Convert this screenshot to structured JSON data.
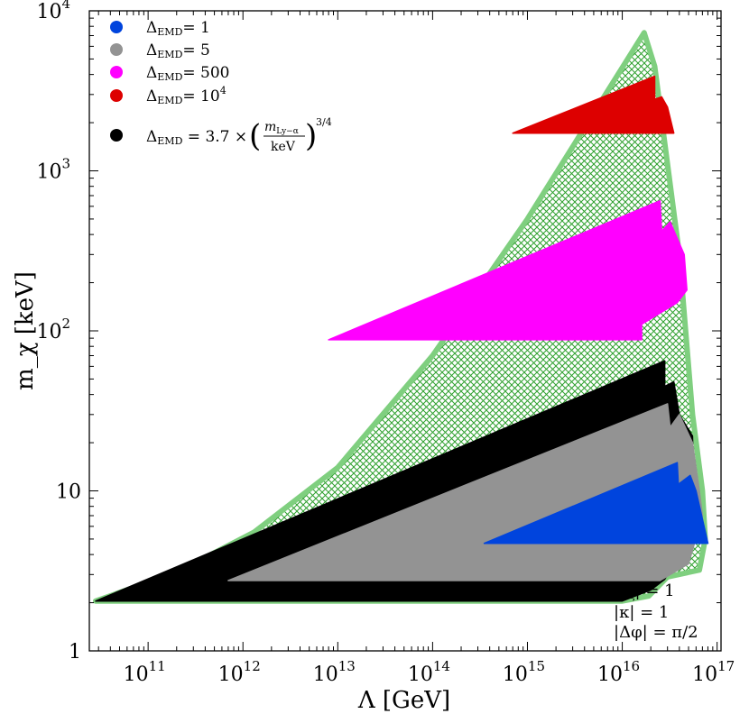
{
  "chart_data": {
    "type": "area",
    "xlabel": "Λ [GeV]",
    "ylabel": "m_χ [keV]",
    "xscale": "log",
    "yscale": "log",
    "xlim": [
      24000000000.0,
      1.1e+17
    ],
    "ylim": [
      1,
      10000
    ],
    "x_ticks": [
      {
        "v": 100000000000.0,
        "m": "10",
        "e": "11"
      },
      {
        "v": 1000000000000.0,
        "m": "10",
        "e": "12"
      },
      {
        "v": 10000000000000.0,
        "m": "10",
        "e": "13"
      },
      {
        "v": 100000000000000.0,
        "m": "10",
        "e": "14"
      },
      {
        "v": 1000000000000000.0,
        "m": "10",
        "e": "15"
      },
      {
        "v": 1e+16,
        "m": "10",
        "e": "16"
      },
      {
        "v": 1e+17,
        "m": "10",
        "e": "17"
      }
    ],
    "y_ticks": [
      {
        "v": 1,
        "m": "1",
        "e": ""
      },
      {
        "v": 10,
        "m": "10",
        "e": ""
      },
      {
        "v": 100,
        "m": "10",
        "e": "2"
      },
      {
        "v": 1000,
        "m": "10",
        "e": "3"
      },
      {
        "v": 10000,
        "m": "10",
        "e": "4"
      }
    ],
    "annotations": [
      "|λ_ξ| = 1",
      "|κ| = 1",
      "|Δφ| = π/2"
    ],
    "series": [
      {
        "name": "hatched",
        "label": "",
        "color": "#7fcf7f",
        "hatch_color": "#2ea02e",
        "points": [
          [
            28000000000.0,
            2.05
          ],
          [
            200000000000.0,
            3.1
          ],
          [
            1300000000000.0,
            5.5
          ],
          [
            10000000000000.0,
            14
          ],
          [
            100000000000000.0,
            70
          ],
          [
            1000000000000000.0,
            500
          ],
          [
            1.7e+16,
            7300
          ],
          [
            2.2e+16,
            4500
          ],
          [
            4e+16,
            300
          ],
          [
            5.5e+16,
            30
          ],
          [
            7e+16,
            10
          ],
          [
            7.5e+16,
            5
          ],
          [
            6.5e+16,
            3.2
          ],
          [
            3e+16,
            2.9
          ],
          [
            1.9e+16,
            2.2
          ],
          [
            1e+16,
            2.05
          ]
        ]
      },
      {
        "name": "black",
        "label": "Δ_EMD = 3.7 × (m_Ly−α / keV)^{3/4}",
        "color": "#000000",
        "points": [
          [
            28000000000.0,
            2.05
          ],
          [
            2.8e+16,
            65
          ],
          [
            2.8e+16,
            45
          ],
          [
            3.5e+16,
            48
          ],
          [
            4e+16,
            30
          ],
          [
            5.5e+16,
            22
          ],
          [
            5.8e+16,
            8
          ],
          [
            4.5e+16,
            4.5
          ],
          [
            2.8e+16,
            2.8
          ],
          [
            2e+16,
            2.4
          ],
          [
            1e+16,
            2.05
          ]
        ]
      },
      {
        "name": "gray",
        "label": "Δ_EMD = 5",
        "color": "#939393",
        "points": [
          [
            700000000000.0,
            2.75
          ],
          [
            3e+16,
            35
          ],
          [
            3.2e+16,
            25
          ],
          [
            4e+16,
            30
          ],
          [
            5.5e+16,
            20
          ],
          [
            6.5e+16,
            10
          ],
          [
            7e+16,
            7
          ],
          [
            5e+16,
            3.5
          ],
          [
            2.5e+16,
            2.75
          ]
        ]
      },
      {
        "name": "blue",
        "label": "Δ_EMD = 1",
        "color": "#0044dd",
        "points": [
          [
            350000000000000.0,
            4.7
          ],
          [
            3.8e+16,
            15
          ],
          [
            3.9e+16,
            11
          ],
          [
            5.2e+16,
            12.5
          ],
          [
            6e+16,
            10
          ],
          [
            8e+16,
            4.7
          ]
        ]
      },
      {
        "name": "magenta",
        "label": "Δ_EMD = 500",
        "color": "#ff00ff",
        "points": [
          [
            8000000000000.0,
            88
          ],
          [
            2.5e+16,
            650
          ],
          [
            2.6e+16,
            420
          ],
          [
            3.2e+16,
            480
          ],
          [
            4.5e+16,
            300
          ],
          [
            4.8e+16,
            180
          ],
          [
            3.8e+16,
            150
          ],
          [
            1.6e+16,
            110
          ],
          [
            1.6e+16,
            88
          ]
        ]
      },
      {
        "name": "red",
        "label": "Δ_EMD = 10^4",
        "color": "#dd0000",
        "points": [
          [
            700000000000000.0,
            1720
          ],
          [
            2.2e+16,
            3900
          ],
          [
            2.2e+16,
            2800
          ],
          [
            2.6e+16,
            2900
          ],
          [
            3e+16,
            2500
          ],
          [
            3.5e+16,
            1720
          ]
        ]
      }
    ],
    "legend": {
      "placement": "top-left",
      "entries": [
        {
          "series": "blue",
          "label": "Δ_EMD = 1",
          "text": "= 1"
        },
        {
          "series": "gray",
          "label": "Δ_EMD = 5",
          "text": "= 5"
        },
        {
          "series": "magenta",
          "label": "Δ_EMD = 500",
          "text": "= 500"
        },
        {
          "series": "red",
          "label": "Δ_EMD = 10^4",
          "text": "= 10"
        }
      ],
      "black_entry": {
        "series": "black",
        "label": "Δ_EMD = 3.7 × (m_Ly−α / keV)^{3/4}"
      }
    }
  }
}
